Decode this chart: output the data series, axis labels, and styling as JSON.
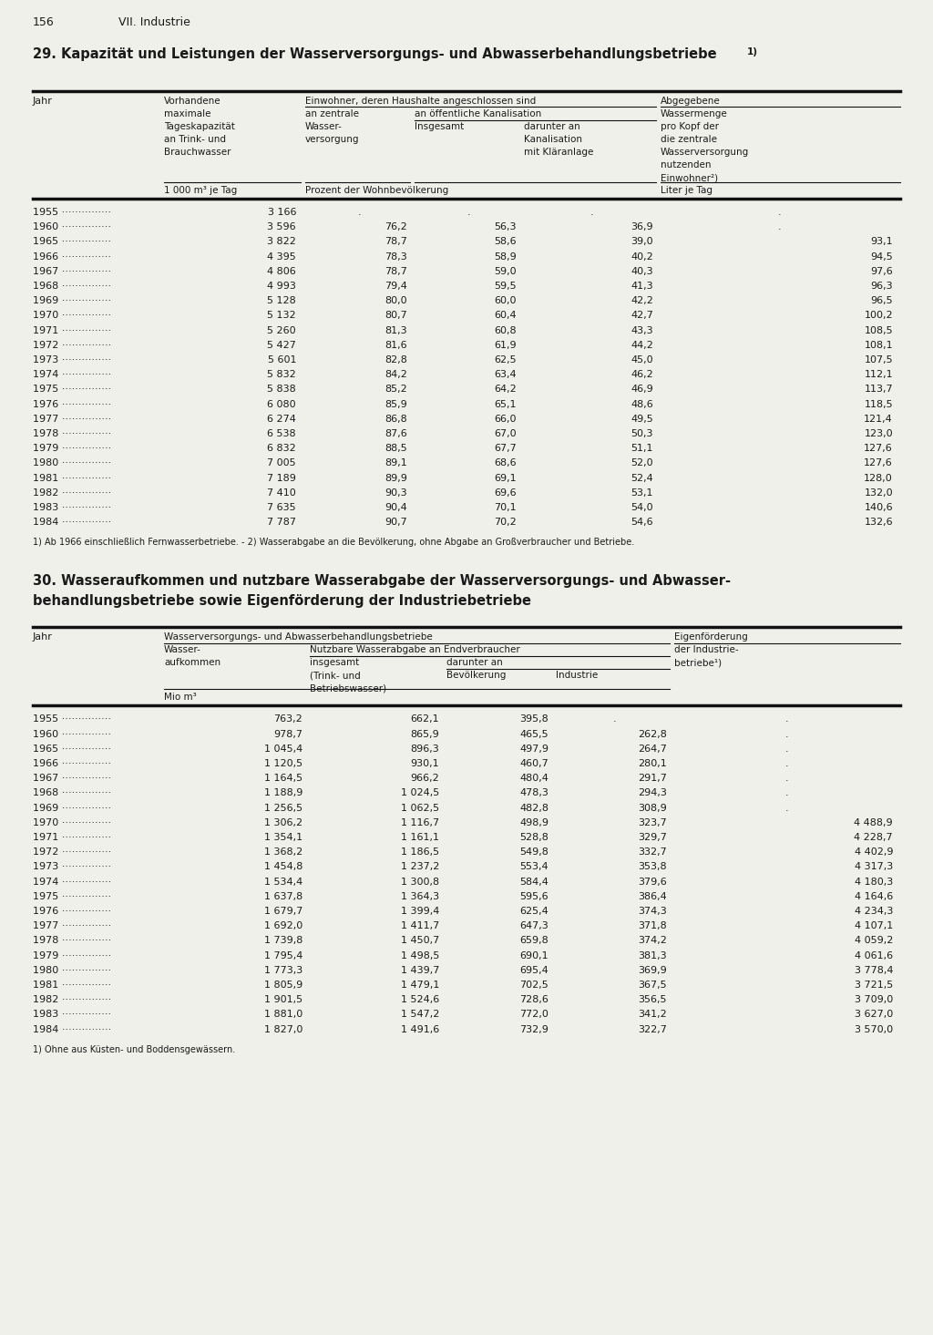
{
  "page_num": "156",
  "section": "VII. Industrie",
  "bg_color": "#f0f0eb",
  "text_color": "#1a1a1a",
  "line_color": "#111111",
  "table1_title": "29. Kapazität und Leistungen der Wasserversorgungs- und Abwasserbehandlungsbetriebe",
  "table1_footnote": "1) Ab 1966 einschließlich Fernwasserbetriebe. - 2) Wasserabgabe an die Bevölkerung, ohne Abgabe an Großverbraucher und Betriebe.",
  "table1_data": [
    [
      "1955",
      "3 166",
      ".",
      ".",
      ".",
      "."
    ],
    [
      "1960",
      "3 596",
      "76,2",
      "56,3",
      "36,9",
      "."
    ],
    [
      "1965",
      "3 822",
      "78,7",
      "58,6",
      "39,0",
      "93,1"
    ],
    [
      "1966",
      "4 395",
      "78,3",
      "58,9",
      "40,2",
      "94,5"
    ],
    [
      "1967",
      "4 806",
      "78,7",
      "59,0",
      "40,3",
      "97,6"
    ],
    [
      "1968",
      "4 993",
      "79,4",
      "59,5",
      "41,3",
      "96,3"
    ],
    [
      "1969",
      "5 128",
      "80,0",
      "60,0",
      "42,2",
      "96,5"
    ],
    [
      "1970",
      "5 132",
      "80,7",
      "60,4",
      "42,7",
      "100,2"
    ],
    [
      "1971",
      "5 260",
      "81,3",
      "60,8",
      "43,3",
      "108,5"
    ],
    [
      "1972",
      "5 427",
      "81,6",
      "61,9",
      "44,2",
      "108,1"
    ],
    [
      "1973",
      "5 601",
      "82,8",
      "62,5",
      "45,0",
      "107,5"
    ],
    [
      "1974",
      "5 832",
      "84,2",
      "63,4",
      "46,2",
      "112,1"
    ],
    [
      "1975",
      "5 838",
      "85,2",
      "64,2",
      "46,9",
      "113,7"
    ],
    [
      "1976",
      "6 080",
      "85,9",
      "65,1",
      "48,6",
      "118,5"
    ],
    [
      "1977",
      "6 274",
      "86,8",
      "66,0",
      "49,5",
      "121,4"
    ],
    [
      "1978",
      "6 538",
      "87,6",
      "67,0",
      "50,3",
      "123,0"
    ],
    [
      "1979",
      "6 832",
      "88,5",
      "67,7",
      "51,1",
      "127,6"
    ],
    [
      "1980",
      "7 005",
      "89,1",
      "68,6",
      "52,0",
      "127,6"
    ],
    [
      "1981",
      "7 189",
      "89,9",
      "69,1",
      "52,4",
      "128,0"
    ],
    [
      "1982",
      "7 410",
      "90,3",
      "69,6",
      "53,1",
      "132,0"
    ],
    [
      "1983",
      "7 635",
      "90,4",
      "70,1",
      "54,0",
      "140,6"
    ],
    [
      "1984",
      "7 787",
      "90,7",
      "70,2",
      "54,6",
      "132,6"
    ]
  ],
  "table2_title_line1": "30. Wasseraufkommen und nutzbare Wasserabgabe der Wasserversorgungs- und Abwasser-",
  "table2_title_line2": "behandlungsbetriebe sowie Eigenförderung der Industriebetriebe",
  "table2_footnote": "1) Ohne aus Küsten- und Boddensgewässern.",
  "table2_data": [
    [
      "1955",
      "763,2",
      "662,1",
      "395,8",
      ".",
      "."
    ],
    [
      "1960",
      "978,7",
      "865,9",
      "465,5",
      "262,8",
      "."
    ],
    [
      "1965",
      "1 045,4",
      "896,3",
      "497,9",
      "264,7",
      "."
    ],
    [
      "1966",
      "1 120,5",
      "930,1",
      "460,7",
      "280,1",
      "."
    ],
    [
      "1967",
      "1 164,5",
      "966,2",
      "480,4",
      "291,7",
      "."
    ],
    [
      "1968",
      "1 188,9",
      "1 024,5",
      "478,3",
      "294,3",
      "."
    ],
    [
      "1969",
      "1 256,5",
      "1 062,5",
      "482,8",
      "308,9",
      "."
    ],
    [
      "1970",
      "1 306,2",
      "1 116,7",
      "498,9",
      "323,7",
      "4 488,9"
    ],
    [
      "1971",
      "1 354,1",
      "1 161,1",
      "528,8",
      "329,7",
      "4 228,7"
    ],
    [
      "1972",
      "1 368,2",
      "1 186,5",
      "549,8",
      "332,7",
      "4 402,9"
    ],
    [
      "1973",
      "1 454,8",
      "1 237,2",
      "553,4",
      "353,8",
      "4 317,3"
    ],
    [
      "1974",
      "1 534,4",
      "1 300,8",
      "584,4",
      "379,6",
      "4 180,3"
    ],
    [
      "1975",
      "1 637,8",
      "1 364,3",
      "595,6",
      "386,4",
      "4 164,6"
    ],
    [
      "1976",
      "1 679,7",
      "1 399,4",
      "625,4",
      "374,3",
      "4 234,3"
    ],
    [
      "1977",
      "1 692,0",
      "1 411,7",
      "647,3",
      "371,8",
      "4 107,1"
    ],
    [
      "1978",
      "1 739,8",
      "1 450,7",
      "659,8",
      "374,2",
      "4 059,2"
    ],
    [
      "1979",
      "1 795,4",
      "1 498,5",
      "690,1",
      "381,3",
      "4 061,6"
    ],
    [
      "1980",
      "1 773,3",
      "1 439,7",
      "695,4",
      "369,9",
      "3 778,4"
    ],
    [
      "1981",
      "1 805,9",
      "1 479,1",
      "702,5",
      "367,5",
      "3 721,5"
    ],
    [
      "1982",
      "1 901,5",
      "1 524,6",
      "728,6",
      "356,5",
      "3 709,0"
    ],
    [
      "1983",
      "1 881,0",
      "1 547,2",
      "772,0",
      "341,2",
      "3 627,0"
    ],
    [
      "1984",
      "1 827,0",
      "1 491,6",
      "732,9",
      "322,7",
      "3 570,0"
    ]
  ]
}
